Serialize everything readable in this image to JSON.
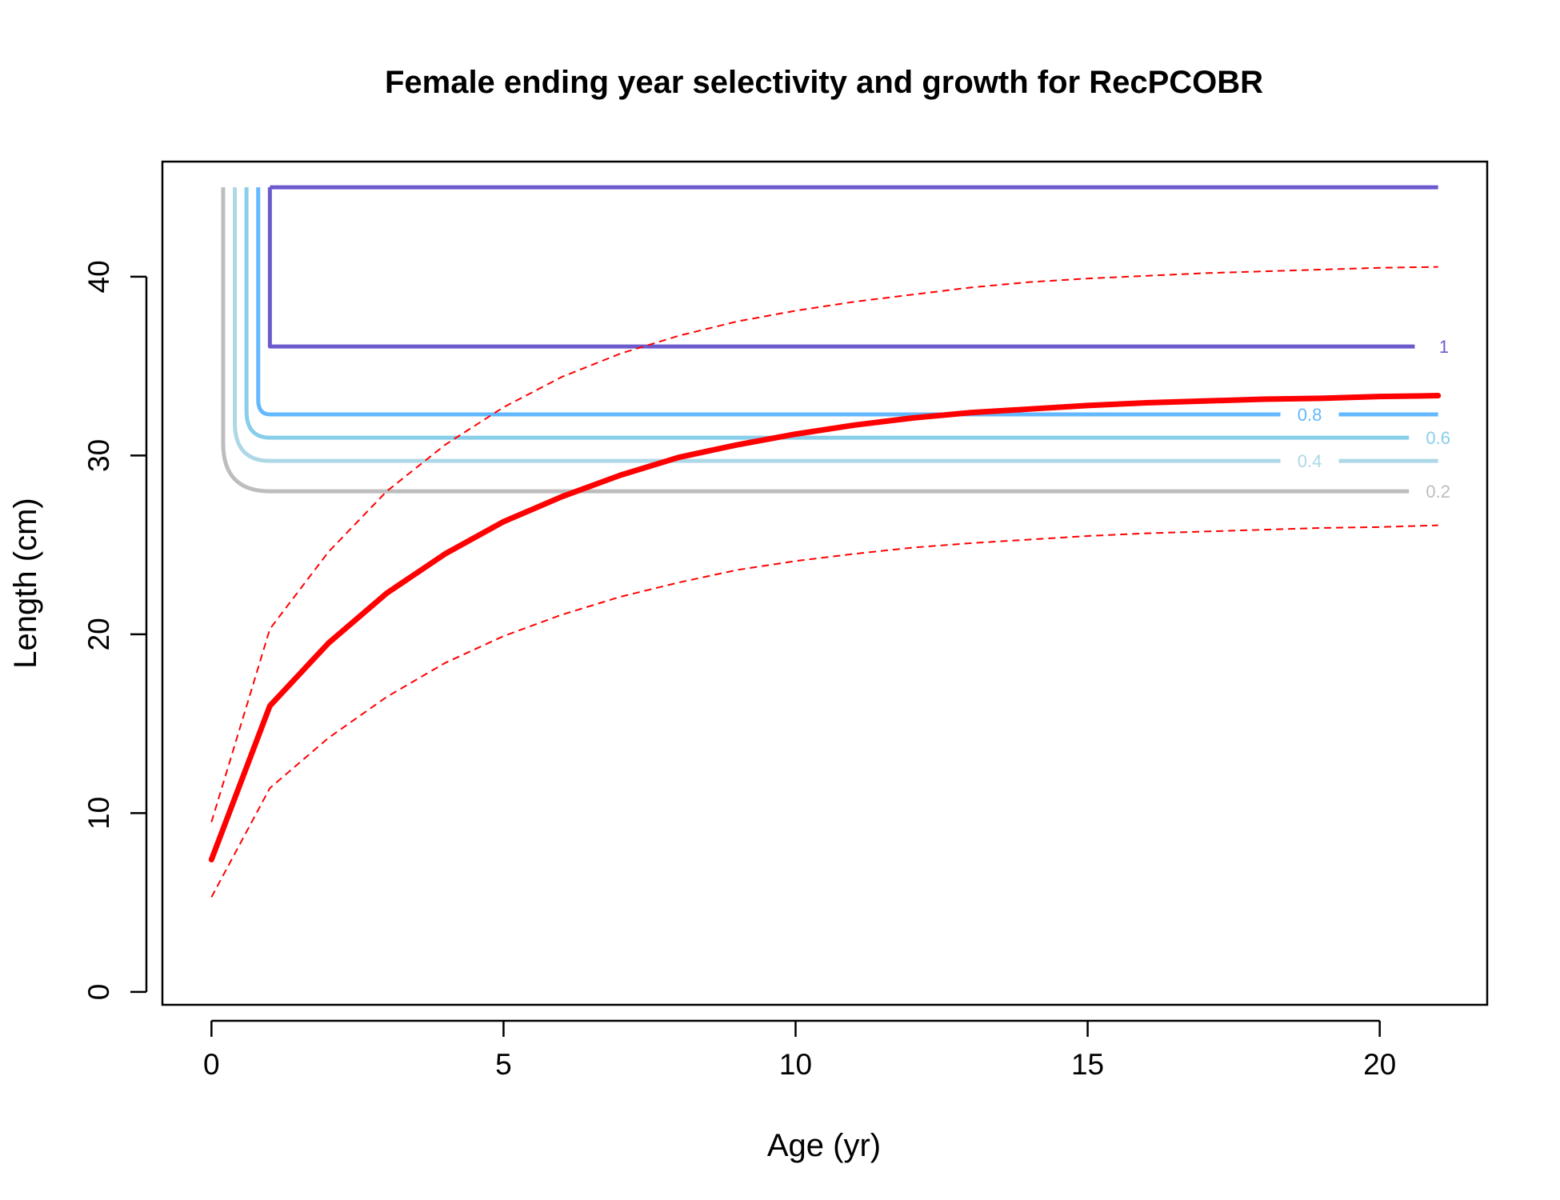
{
  "chart_data": {
    "type": "line",
    "title": "Female ending year selectivity and growth for RecPCOBR",
    "xlabel": "Age (yr)",
    "ylabel": "Length (cm)",
    "xlim": [
      -0.84,
      21.84
    ],
    "ylim": [
      -0.72,
      46.44
    ],
    "x_ticks": [
      0,
      5,
      10,
      15,
      20
    ],
    "x_tick_labels": [
      "0",
      "5",
      "10",
      "15",
      "20"
    ],
    "y_ticks": [
      0,
      10,
      20,
      30,
      40
    ],
    "y_tick_labels": [
      "0",
      "10",
      "20",
      "30",
      "40"
    ],
    "grid": false,
    "legend": "none",
    "growth": {
      "color": "#ff0000",
      "ages": [
        0,
        1,
        2,
        3,
        4,
        5,
        6,
        7,
        8,
        9,
        10,
        11,
        12,
        13,
        14,
        15,
        16,
        17,
        18,
        19,
        20,
        21
      ],
      "mean": [
        7.4,
        16.0,
        19.5,
        22.3,
        24.5,
        26.3,
        27.7,
        28.9,
        29.9,
        30.6,
        31.2,
        31.7,
        32.1,
        32.4,
        32.6,
        32.8,
        32.95,
        33.05,
        33.15,
        33.2,
        33.3,
        33.35
      ],
      "lower": [
        5.3,
        11.4,
        14.2,
        16.5,
        18.4,
        19.9,
        21.1,
        22.1,
        22.9,
        23.6,
        24.1,
        24.5,
        24.85,
        25.1,
        25.3,
        25.5,
        25.65,
        25.75,
        25.85,
        25.95,
        26.0,
        26.1
      ],
      "upper": [
        9.5,
        20.3,
        24.6,
        28.0,
        30.6,
        32.7,
        34.4,
        35.7,
        36.7,
        37.5,
        38.1,
        38.6,
        39.0,
        39.4,
        39.7,
        39.9,
        40.05,
        40.2,
        40.3,
        40.4,
        40.5,
        40.55
      ]
    },
    "selectivity_contours": [
      {
        "level": "0.2",
        "color": "#bdbdbd",
        "corner_age": 0.2,
        "length": 28.0,
        "label_x": 20.65,
        "label": "0.2"
      },
      {
        "level": "0.4",
        "color": "#add8e6",
        "corner_age": 0.4,
        "length": 29.7,
        "label_x": 18.45,
        "label": "0.4"
      },
      {
        "level": "0.6",
        "color": "#87ceeb",
        "corner_age": 0.6,
        "length": 31.0,
        "label_x": 20.65,
        "label": "0.6"
      },
      {
        "level": "0.8",
        "color": "#63b8ff",
        "corner_age": 0.8,
        "length": 32.3,
        "label_x": 18.45,
        "label": "0.8"
      },
      {
        "level": "1",
        "color": "#6a5acd",
        "corner_age": 1.0,
        "length": 36.1,
        "label_x": 20.75,
        "label": "1"
      }
    ],
    "selectivity_top_line": {
      "y": 45,
      "x_start": 1.0,
      "x_end": 21.0,
      "color": "#6a5acd"
    }
  }
}
